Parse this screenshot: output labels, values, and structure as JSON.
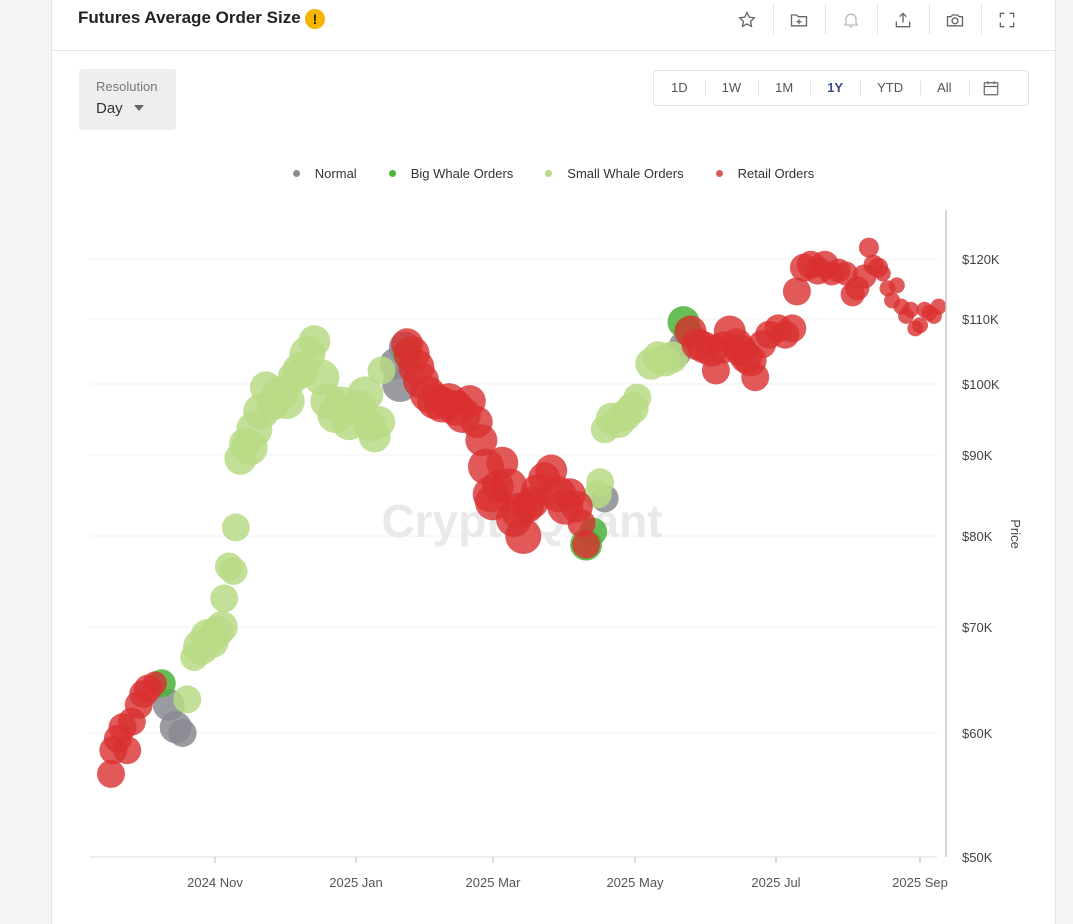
{
  "header": {
    "title": "Futures Average Order Size",
    "warning_icon": "exclamation-icon",
    "actions": [
      "star-icon",
      "add-folder-icon",
      "bell-icon",
      "share-icon",
      "camera-icon",
      "fullscreen-icon"
    ]
  },
  "resolution": {
    "label": "Resolution",
    "value": "Day"
  },
  "ranges": [
    "1D",
    "1W",
    "1M",
    "1Y",
    "YTD",
    "All"
  ],
  "active_range": "1Y",
  "watermark": "CryptoQuant",
  "colors": {
    "Normal": "#8a8a92",
    "Big Whale Orders": "#4cb33a",
    "Small Whale Orders": "#b9da86",
    "Retail Orders": "#d93030"
  },
  "chart_data": {
    "type": "scatter",
    "ylabel": "Price",
    "y_scale": "log",
    "y_ticks": [
      "$50K",
      "$60K",
      "$70K",
      "$80K",
      "$90K",
      "$100K",
      "$110K",
      "$120K"
    ],
    "y_tick_values": [
      50000,
      60000,
      70000,
      80000,
      90000,
      100000,
      110000,
      120000
    ],
    "x_ticks": [
      "2024 Nov",
      "2025 Jan",
      "2025 Mar",
      "2025 May",
      "2025 Jul",
      "2025 Sep"
    ],
    "x_tick_dates": [
      "2024-11-01",
      "2025-01-01",
      "2025-03-01",
      "2025-05-01",
      "2025-07-01",
      "2025-09-01"
    ],
    "legend": [
      "Normal",
      "Big Whale Orders",
      "Small Whale Orders",
      "Retail Orders"
    ],
    "series": [
      {
        "name": "Normal",
        "points": [
          [
            "2024-10-12",
            62500,
            8
          ],
          [
            "2024-10-15",
            60500,
            8
          ],
          [
            "2024-10-18",
            60000,
            7
          ],
          [
            "2025-01-18",
            103000,
            8
          ],
          [
            "2025-01-20",
            100000,
            9
          ],
          [
            "2025-01-22",
            105500,
            8
          ],
          [
            "2025-04-18",
            84500,
            7
          ],
          [
            "2025-05-19",
            104500,
            7
          ],
          [
            "2025-05-21",
            106000,
            6
          ]
        ]
      },
      {
        "name": "Big Whale Orders",
        "points": [
          [
            "2024-10-09",
            64500,
            7
          ],
          [
            "2025-01-23",
            104500,
            7
          ],
          [
            "2025-04-10",
            79000,
            8
          ],
          [
            "2025-04-13",
            80500,
            7
          ],
          [
            "2025-05-22",
            109500,
            8
          ],
          [
            "2025-05-24",
            108000,
            7
          ]
        ]
      },
      {
        "name": "Small Whale Orders",
        "points": [
          [
            "2024-10-20",
            63000,
            7
          ],
          [
            "2024-10-23",
            67000,
            7
          ],
          [
            "2024-10-26",
            68000,
            9
          ],
          [
            "2024-10-29",
            69000,
            9
          ],
          [
            "2024-10-31",
            68500,
            8
          ],
          [
            "2024-11-02",
            69500,
            8
          ],
          [
            "2024-11-04",
            70000,
            8
          ],
          [
            "2024-11-05",
            73000,
            7
          ],
          [
            "2024-11-07",
            76500,
            7
          ],
          [
            "2024-11-09",
            76000,
            7
          ],
          [
            "2024-11-10",
            81000,
            7
          ],
          [
            "2024-11-12",
            89500,
            8
          ],
          [
            "2024-11-14",
            91500,
            8
          ],
          [
            "2024-11-16",
            91000,
            9
          ],
          [
            "2024-11-18",
            93500,
            9
          ],
          [
            "2024-11-21",
            96000,
            9
          ],
          [
            "2024-11-23",
            99500,
            8
          ],
          [
            "2024-11-26",
            97000,
            8
          ],
          [
            "2024-11-29",
            98500,
            9
          ],
          [
            "2024-12-02",
            97500,
            9
          ],
          [
            "2024-12-05",
            101000,
            8
          ],
          [
            "2024-12-08",
            102000,
            9
          ],
          [
            "2024-12-11",
            104500,
            9
          ],
          [
            "2024-12-14",
            106500,
            8
          ],
          [
            "2024-12-17",
            101000,
            9
          ],
          [
            "2024-12-20",
            97500,
            9
          ],
          [
            "2024-12-23",
            95500,
            9
          ],
          [
            "2024-12-26",
            97000,
            9
          ],
          [
            "2024-12-29",
            94500,
            9
          ],
          [
            "2025-01-02",
            96500,
            9
          ],
          [
            "2025-01-05",
            98500,
            9
          ],
          [
            "2025-01-07",
            94000,
            8
          ],
          [
            "2025-01-09",
            92500,
            8
          ],
          [
            "2025-01-11",
            94500,
            8
          ],
          [
            "2025-01-12",
            102000,
            7
          ],
          [
            "2025-04-15",
            85000,
            7
          ],
          [
            "2025-04-16",
            86500,
            7
          ],
          [
            "2025-04-18",
            93500,
            7
          ],
          [
            "2025-04-21",
            95000,
            8
          ],
          [
            "2025-04-24",
            94500,
            8
          ],
          [
            "2025-04-27",
            95500,
            8
          ],
          [
            "2025-04-30",
            96500,
            8
          ],
          [
            "2025-05-02",
            98000,
            7
          ],
          [
            "2025-05-08",
            103000,
            8
          ],
          [
            "2025-05-11",
            104000,
            8
          ],
          [
            "2025-05-14",
            103500,
            8
          ],
          [
            "2025-05-17",
            104000,
            8
          ]
        ]
      },
      {
        "name": "Retail Orders",
        "points": [
          [
            "2024-09-17",
            56500,
            7
          ],
          [
            "2024-09-18",
            58500,
            7
          ],
          [
            "2024-09-20",
            59500,
            7
          ],
          [
            "2024-09-22",
            60500,
            7
          ],
          [
            "2024-09-24",
            58500,
            7
          ],
          [
            "2024-09-26",
            61000,
            7
          ],
          [
            "2024-09-29",
            62500,
            7
          ],
          [
            "2024-10-01",
            63500,
            7
          ],
          [
            "2024-10-03",
            64000,
            7
          ],
          [
            "2024-10-06",
            64500,
            6
          ],
          [
            "2025-01-23",
            106000,
            8
          ],
          [
            "2025-01-25",
            104500,
            9
          ],
          [
            "2025-01-27",
            102500,
            9
          ],
          [
            "2025-01-29",
            100500,
            9
          ],
          [
            "2025-02-01",
            98500,
            9
          ],
          [
            "2025-02-04",
            97500,
            9
          ],
          [
            "2025-02-07",
            97000,
            9
          ],
          [
            "2025-02-10",
            97500,
            9
          ],
          [
            "2025-02-13",
            96500,
            9
          ],
          [
            "2025-02-16",
            95500,
            9
          ],
          [
            "2025-02-19",
            97500,
            8
          ],
          [
            "2025-02-22",
            94500,
            8
          ],
          [
            "2025-02-24",
            92000,
            8
          ],
          [
            "2025-02-26",
            88500,
            9
          ],
          [
            "2025-02-28",
            85000,
            9
          ],
          [
            "2025-03-01",
            84000,
            9
          ],
          [
            "2025-03-03",
            86000,
            8
          ],
          [
            "2025-03-05",
            89000,
            8
          ],
          [
            "2025-03-08",
            86000,
            9
          ],
          [
            "2025-03-10",
            82000,
            9
          ],
          [
            "2025-03-12",
            83000,
            9
          ],
          [
            "2025-03-14",
            80000,
            9
          ],
          [
            "2025-03-16",
            83500,
            8
          ],
          [
            "2025-03-18",
            84000,
            8
          ],
          [
            "2025-03-20",
            85500,
            8
          ],
          [
            "2025-03-23",
            87000,
            8
          ],
          [
            "2025-03-26",
            88000,
            8
          ],
          [
            "2025-03-29",
            85000,
            9
          ],
          [
            "2025-04-01",
            83500,
            9
          ],
          [
            "2025-04-03",
            85000,
            8
          ],
          [
            "2025-04-06",
            83500,
            8
          ],
          [
            "2025-04-08",
            81500,
            7
          ],
          [
            "2025-04-10",
            79000,
            7
          ],
          [
            "2025-05-25",
            108000,
            8
          ],
          [
            "2025-05-28",
            106000,
            8
          ],
          [
            "2025-05-31",
            105500,
            8
          ],
          [
            "2025-06-03",
            105000,
            8
          ],
          [
            "2025-06-05",
            102000,
            7
          ],
          [
            "2025-06-08",
            105500,
            8
          ],
          [
            "2025-06-11",
            108000,
            8
          ],
          [
            "2025-06-14",
            106000,
            8
          ],
          [
            "2025-06-16",
            105000,
            8
          ],
          [
            "2025-06-18",
            104000,
            8
          ],
          [
            "2025-06-20",
            103500,
            8
          ],
          [
            "2025-06-22",
            101000,
            7
          ],
          [
            "2025-06-25",
            106000,
            7
          ],
          [
            "2025-06-28",
            107500,
            7
          ],
          [
            "2025-07-02",
            108500,
            7
          ],
          [
            "2025-07-05",
            107500,
            7
          ],
          [
            "2025-07-08",
            108500,
            7
          ],
          [
            "2025-07-10",
            114500,
            7
          ],
          [
            "2025-07-13",
            118500,
            7
          ],
          [
            "2025-07-16",
            119000,
            7
          ],
          [
            "2025-07-19",
            118000,
            7
          ],
          [
            "2025-07-22",
            119000,
            7
          ],
          [
            "2025-07-25",
            117500,
            6
          ],
          [
            "2025-07-28",
            118000,
            6
          ],
          [
            "2025-07-31",
            117500,
            6
          ],
          [
            "2025-08-03",
            114000,
            6
          ],
          [
            "2025-08-05",
            115000,
            6
          ],
          [
            "2025-08-08",
            117000,
            6
          ],
          [
            "2025-08-10",
            122000,
            5
          ],
          [
            "2025-08-12",
            119000,
            5
          ],
          [
            "2025-08-14",
            118500,
            5
          ],
          [
            "2025-08-16",
            117500,
            4
          ],
          [
            "2025-08-18",
            115000,
            4
          ],
          [
            "2025-08-20",
            113000,
            4
          ],
          [
            "2025-08-22",
            115500,
            4
          ],
          [
            "2025-08-24",
            112000,
            4
          ],
          [
            "2025-08-26",
            110500,
            4
          ],
          [
            "2025-08-28",
            111500,
            4
          ],
          [
            "2025-08-30",
            108500,
            4
          ],
          [
            "2025-09-01",
            109000,
            4
          ],
          [
            "2025-09-03",
            111500,
            4
          ],
          [
            "2025-09-05",
            111000,
            4
          ],
          [
            "2025-09-07",
            110500,
            4
          ],
          [
            "2025-09-09",
            112000,
            4
          ]
        ]
      }
    ]
  }
}
